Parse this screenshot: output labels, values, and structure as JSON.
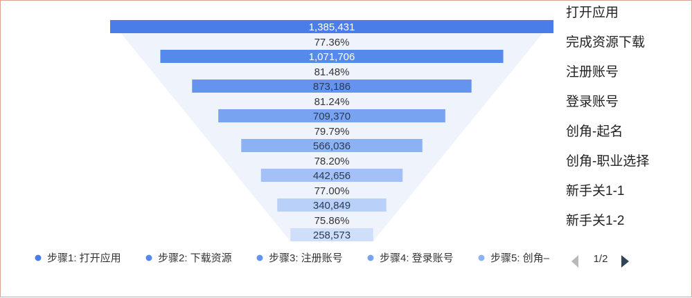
{
  "chart_data": {
    "type": "funnel",
    "stages": [
      {
        "name": "打开应用",
        "value": 1385431,
        "value_label": "1,385,431",
        "conversion_label": "77.36%",
        "color": "#4a7de8"
      },
      {
        "name": "完成资源下载",
        "value": 1071706,
        "value_label": "1,071,706",
        "conversion_label": "81.48%",
        "color": "#5689ec"
      },
      {
        "name": "注册账号",
        "value": 873186,
        "value_label": "873,186",
        "conversion_label": "81.24%",
        "color": "#6494ef"
      },
      {
        "name": "登录账号",
        "value": 709370,
        "value_label": "709,370",
        "conversion_label": "79.79%",
        "color": "#78a3f1"
      },
      {
        "name": "创角-起名",
        "value": 566036,
        "value_label": "566,036",
        "conversion_label": "78.20%",
        "color": "#8db2f4"
      },
      {
        "name": "创角-职业选择",
        "value": 442656,
        "value_label": "442,656",
        "conversion_label": "77.00%",
        "color": "#a3c1f6"
      },
      {
        "name": "新手关1-1",
        "value": 340849,
        "value_label": "340,849",
        "conversion_label": "75.86%",
        "color": "#b9d0f8"
      },
      {
        "name": "新手关1-2",
        "value": 258573,
        "value_label": "258,573",
        "conversion_label": "",
        "color": "#cfdffa"
      }
    ],
    "legend": {
      "placement": "bottom",
      "items": [
        {
          "label": "步骤1: 打开应用",
          "color": "#4a7de8"
        },
        {
          "label": "步骤2: 下载资源",
          "color": "#5689ec"
        },
        {
          "label": "步骤3: 注册账号",
          "color": "#6494ef"
        },
        {
          "label": "步骤4: 登录账号",
          "color": "#78a3f1"
        },
        {
          "label": "步骤5: 创角–",
          "color": "#8db2f4"
        }
      ],
      "pager": "1/2"
    }
  }
}
